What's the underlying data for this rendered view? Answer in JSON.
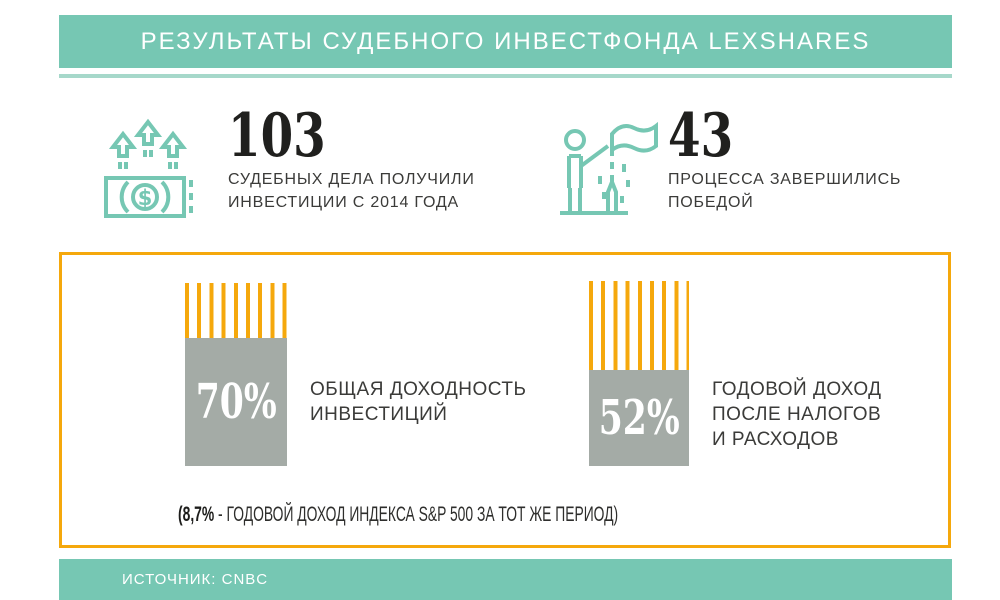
{
  "colors": {
    "teal": "#76c7b3",
    "teal_light": "#a6d8ca",
    "orange": "#f5a80c",
    "gray_bar": "#a4aba6",
    "ink": "#20201e",
    "text": "#3b3b39",
    "white": "#ffffff"
  },
  "header": {
    "title": "РЕЗУЛЬТАТЫ СУДЕБНОГО ИНВЕСТФОНДА LEXSHARES"
  },
  "stats": [
    {
      "icon": "money-growth-icon",
      "value": "103",
      "lines": [
        "СУДЕБНЫХ ДЕЛА ПОЛУЧИЛИ",
        "ИНВЕСТИЦИИ С 2014 ГОДА"
      ]
    },
    {
      "icon": "victory-flag-icon",
      "value": "43",
      "lines": [
        "ПРОЦЕССА ЗАВЕРШИЛИСЬ",
        "ПОБЕДОЙ"
      ]
    }
  ],
  "chart_data": {
    "type": "bar",
    "categories": [
      "ОБЩАЯ ДОХОДНОСТЬ ИНВЕСТИЦИЙ",
      "ГОДОВОЙ ДОХОД ПОСЛЕ НАЛОГОВ И РАСХОДОВ"
    ],
    "values": [
      70,
      52
    ],
    "unit": "%",
    "ylim": [
      0,
      100
    ],
    "style": "solid gray segment = value; striped orange segment = remainder to 100%",
    "annotation": "(8,7% - ГОДОВОЙ ДОХОД ИНДЕКСА S&P 500 ЗА ТОТ ЖЕ ПЕРИОД)",
    "benchmark_value": "8,7%"
  },
  "bars": [
    {
      "value_label": "70%",
      "label_lines": [
        "ОБЩАЯ ДОХОДНОСТЬ",
        "ИНВЕСТИЦИЙ",
        ""
      ]
    },
    {
      "value_label": "52%",
      "label_lines": [
        "ГОДОВОЙ ДОХОД",
        "ПОСЛЕ НАЛОГОВ",
        "И РАСХОДОВ"
      ]
    }
  ],
  "note": {
    "bold": "(8,7%",
    "rest": " - ГОДОВОЙ ДОХОД ИНДЕКСА S&P 500 ЗА ТОТ ЖЕ ПЕРИОД)"
  },
  "footer": {
    "source": "ИСТОЧНИК: CNBC"
  }
}
